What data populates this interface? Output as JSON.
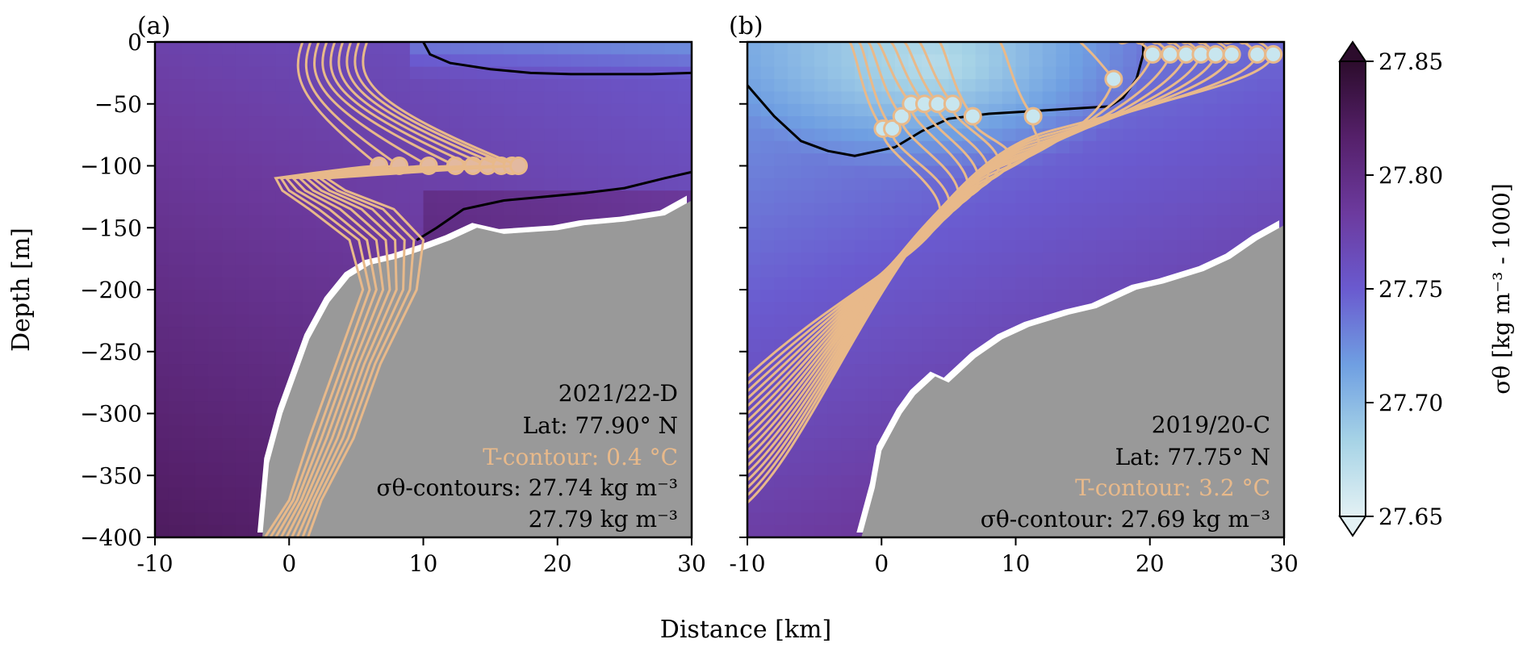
{
  "chart_data": [
    {
      "id": "a",
      "type": "heatmap",
      "panel_label": "(a)",
      "xlim": [
        -10,
        30
      ],
      "ylim": [
        -400,
        0
      ],
      "xticks": [
        -10,
        0,
        10,
        20,
        30
      ],
      "xtick_labels": [
        "-10",
        "0",
        "10",
        "20",
        "30"
      ],
      "yticks": [
        0,
        -50,
        -100,
        -150,
        -200,
        -250,
        -300,
        -350,
        -400
      ],
      "ytick_labels": [
        "0",
        "−50",
        "−100",
        "−150",
        "−200",
        "−250",
        "−300",
        "−350",
        "−400"
      ],
      "ylabel": "Depth [m]",
      "annotation": {
        "line1": "2021/22-D",
        "line2": "Lat:  77.90° N",
        "line3": "T-contour: 0.4 °C",
        "line4": "σθ-contours:  27.74 kg m⁻³",
        "line5": "27.79 kg m⁻³"
      },
      "bathymetry": [
        [
          -2,
          -400
        ],
        [
          -1.5,
          -340
        ],
        [
          -0.5,
          -300
        ],
        [
          0.5,
          -270
        ],
        [
          1.5,
          -240
        ],
        [
          3,
          -210
        ],
        [
          4.5,
          -190
        ],
        [
          6,
          -180
        ],
        [
          8,
          -175
        ],
        [
          10,
          -168
        ],
        [
          12,
          -160
        ],
        [
          14,
          -150
        ],
        [
          16,
          -155
        ],
        [
          20,
          -152
        ],
        [
          22,
          -148
        ],
        [
          25,
          -145
        ],
        [
          28,
          -140
        ],
        [
          30,
          -128
        ]
      ],
      "sigma_contours": [
        {
          "level": 27.74,
          "points": [
            [
              10,
              0
            ],
            [
              10.5,
              -10
            ],
            [
              12,
              -17
            ],
            [
              15,
              -22
            ],
            [
              18,
              -25
            ],
            [
              21,
              -26
            ],
            [
              24,
              -26
            ],
            [
              27,
              -26
            ],
            [
              30,
              -25
            ]
          ]
        },
        {
          "level": 27.79,
          "points": [
            [
              9.5,
              -160
            ],
            [
              11,
              -150
            ],
            [
              13,
              -135
            ],
            [
              16,
              -128
            ],
            [
              19,
              -125
            ],
            [
              22,
              -122
            ],
            [
              25,
              -118
            ],
            [
              28,
              -110
            ],
            [
              30,
              -105
            ]
          ]
        }
      ],
      "t_contours": [
        {
          "x0": -1.8,
          "xs": [
            -1.8,
            0,
            1.5,
            3.5,
            5.5,
            4.5,
            1.5,
            -0.5,
            -1.0
          ],
          "xtop": -1.0,
          "start": [
            6.7,
            -100
          ]
        },
        {
          "x0": -1.4,
          "xs": [
            -1.4,
            0.3,
            2.0,
            4.0,
            6.0,
            5.2,
            2.2,
            0.0,
            -0.6
          ],
          "xtop": -0.4,
          "start": [
            8.2,
            -100
          ]
        },
        {
          "x0": -1.0,
          "xs": [
            -1.0,
            0.6,
            2.4,
            4.4,
            6.5,
            5.8,
            3.0,
            0.6,
            -0.2
          ],
          "xtop": 0.2,
          "start": [
            10.4,
            -100
          ]
        },
        {
          "x0": -0.6,
          "xs": [
            -0.6,
            0.9,
            2.8,
            4.8,
            7.0,
            6.5,
            3.8,
            1.2,
            0.3
          ],
          "xtop": 0.8,
          "start": [
            12.4,
            -100
          ]
        },
        {
          "x0": -0.2,
          "xs": [
            -0.2,
            1.2,
            3.2,
            5.2,
            7.5,
            7.2,
            4.6,
            1.8,
            0.8
          ],
          "xtop": 1.4,
          "start": [
            13.7,
            -100
          ]
        },
        {
          "x0": 0.2,
          "xs": [
            0.2,
            1.5,
            3.6,
            5.6,
            8.0,
            7.9,
            5.4,
            2.4,
            1.3
          ],
          "xtop": 2.0,
          "start": [
            14.8,
            -100
          ]
        },
        {
          "x0": 0.6,
          "xs": [
            0.6,
            1.8,
            4.0,
            6.0,
            8.5,
            8.6,
            6.2,
            3.0,
            1.8
          ],
          "xtop": 2.6,
          "start": [
            15.8,
            -100
          ]
        },
        {
          "x0": 1.0,
          "xs": [
            1.0,
            2.1,
            4.4,
            6.4,
            9.0,
            9.3,
            7.0,
            3.6,
            2.3
          ],
          "xtop": 3.2,
          "start": [
            16.6,
            -100
          ]
        },
        {
          "x0": 1.4,
          "xs": [
            1.4,
            2.4,
            4.8,
            6.8,
            9.5,
            10.0,
            7.8,
            4.2,
            2.8
          ],
          "xtop": 3.8,
          "start": [
            17.1,
            -100
          ]
        }
      ]
    },
    {
      "id": "b",
      "type": "heatmap",
      "panel_label": "(b)",
      "xlim": [
        -10,
        30
      ],
      "ylim": [
        -400,
        0
      ],
      "xticks": [
        -10,
        0,
        10,
        20,
        30
      ],
      "xtick_labels": [
        "-10",
        "0",
        "10",
        "20",
        "30"
      ],
      "yticks": [
        0,
        -50,
        -100,
        -150,
        -200,
        -250,
        -300,
        -350,
        -400
      ],
      "annotation": {
        "line1": "2019/20-C",
        "line2": "Lat:  77.75° N",
        "line3": "T-contour: 3.2 °C",
        "line4": "σθ-contour:  27.69 kg m⁻³"
      },
      "bathymetry": [
        [
          -1.5,
          -400
        ],
        [
          -0.5,
          -360
        ],
        [
          0,
          -330
        ],
        [
          1.5,
          -300
        ],
        [
          2.5,
          -285
        ],
        [
          4,
          -270
        ],
        [
          5,
          -275
        ],
        [
          7,
          -255
        ],
        [
          9,
          -240
        ],
        [
          11,
          -230
        ],
        [
          14,
          -220
        ],
        [
          16,
          -215
        ],
        [
          19,
          -200
        ],
        [
          21,
          -195
        ],
        [
          24,
          -185
        ],
        [
          26,
          -175
        ],
        [
          28,
          -160
        ],
        [
          30,
          -148
        ]
      ],
      "sigma_contours": [
        {
          "level": 27.69,
          "points": [
            [
              -10,
              -35
            ],
            [
              -8,
              -60
            ],
            [
              -6,
              -80
            ],
            [
              -4,
              -88
            ],
            [
              -2,
              -92
            ],
            [
              1,
              -85
            ],
            [
              3,
              -72
            ],
            [
              5,
              -62
            ],
            [
              8,
              -58
            ],
            [
              11,
              -56
            ],
            [
              14,
              -54
            ],
            [
              17,
              -52
            ],
            [
              18,
              -45
            ],
            [
              19,
              -30
            ],
            [
              19.5,
              -10
            ],
            [
              19.5,
              0
            ]
          ]
        }
      ],
      "t_contours": [
        {
          "start": [
            0.1,
            -70
          ],
          "bend": -150
        },
        {
          "start": [
            0.8,
            -70
          ],
          "bend": -145
        },
        {
          "start": [
            1.5,
            -60
          ],
          "bend": -140
        },
        {
          "start": [
            2.2,
            -50
          ],
          "bend": -135
        },
        {
          "start": [
            3.2,
            -50
          ],
          "bend": -130
        },
        {
          "start": [
            4.2,
            -50
          ],
          "bend": -125
        },
        {
          "start": [
            5.3,
            -50
          ],
          "bend": -120
        },
        {
          "start": [
            6.8,
            -60
          ],
          "bend": -115
        },
        {
          "start": [
            11.3,
            -60
          ],
          "bend": -110
        },
        {
          "start": [
            17.3,
            -30
          ],
          "bend": -105
        },
        {
          "start": [
            20.2,
            -10
          ],
          "bend": -100
        },
        {
          "start": [
            21.5,
            -10
          ],
          "bend": -96
        },
        {
          "start": [
            22.7,
            -10
          ],
          "bend": -92
        },
        {
          "start": [
            23.8,
            -10
          ],
          "bend": -88
        },
        {
          "start": [
            24.9,
            -10
          ],
          "bend": -84
        },
        {
          "start": [
            26.1,
            -10
          ],
          "bend": -80
        },
        {
          "start": [
            28.0,
            -10
          ],
          "bend": -76
        },
        {
          "start": [
            29.2,
            -10
          ],
          "bend": -72
        }
      ]
    }
  ],
  "shared": {
    "xlabel": "Distance [km]",
    "colorbar": {
      "label": "σθ [kg m⁻³ - 1000]",
      "min": 27.65,
      "max": 27.85,
      "ticks": [
        27.85,
        27.8,
        27.75,
        27.7,
        27.65
      ],
      "tick_labels": [
        "27.85",
        "27.80",
        "27.75",
        "27.70",
        "27.65"
      ],
      "colors": [
        "#e3f1f4",
        "#a6d3e6",
        "#6f9fe2",
        "#6a5acf",
        "#6c3a9e",
        "#55206a",
        "#2c0c2c"
      ]
    },
    "accent_color": "#e8b98a",
    "contour_color": "#000000"
  }
}
